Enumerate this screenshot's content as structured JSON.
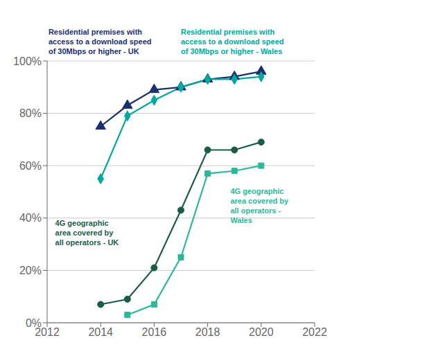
{
  "chart_data": {
    "type": "line",
    "x": [
      2014,
      2015,
      2016,
      2017,
      2018,
      2019,
      2020
    ],
    "series": [
      {
        "name": "Residential premises with\naccess to a download speed\nof 30Mbps or higher - UK",
        "color": "#1a2f6e",
        "marker": "triangle",
        "values": [
          0.75,
          0.83,
          0.89,
          0.9,
          0.93,
          0.94,
          0.96
        ]
      },
      {
        "name": "Residential premises with\naccess to a download speed\nof 30Mbps or higher - Wales",
        "color": "#00a89d",
        "marker": "diamond",
        "values": [
          0.55,
          0.79,
          0.85,
          0.9,
          0.93,
          0.93,
          0.94
        ]
      },
      {
        "name": "4G geographic\narea covered by\nall operators - UK",
        "color": "#1a5c4a",
        "marker": "circle",
        "values": [
          0.07,
          0.09,
          0.21,
          0.43,
          0.66,
          0.66,
          0.69
        ]
      },
      {
        "name": "4G geographic\narea covered by\nall operators -\nWales",
        "color": "#2db89a",
        "marker": "square",
        "values": [
          null,
          0.03,
          0.07,
          0.25,
          0.57,
          0.58,
          0.6
        ]
      }
    ],
    "xlim": [
      2012,
      2022
    ],
    "xticks": [
      2012,
      2014,
      2016,
      2018,
      2020,
      2022
    ],
    "ylim": [
      0,
      1.0
    ],
    "yticks": [
      {
        "value": 0,
        "label": "0%"
      },
      {
        "value": 0.2,
        "label": "20%"
      },
      {
        "value": 0.4,
        "label": "40%"
      },
      {
        "value": 0.6,
        "label": "60%"
      },
      {
        "value": 0.8,
        "label": "80%"
      },
      {
        "value": 1.0,
        "label": "100%"
      }
    ],
    "grid": true
  }
}
